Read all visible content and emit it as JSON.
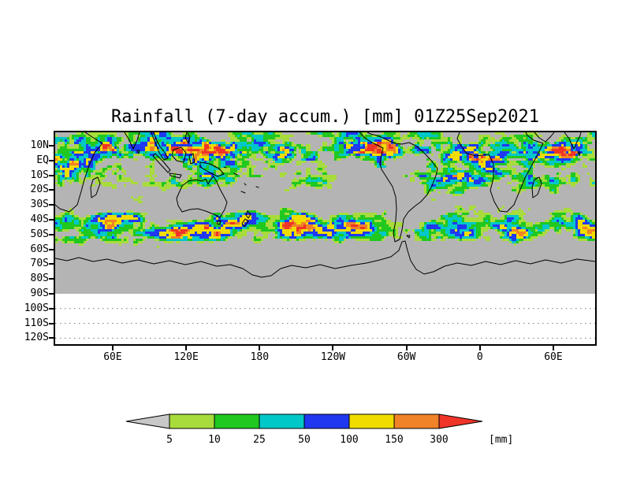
{
  "figure": {
    "title": "Rainfall (7-day accum.) [mm] 01Z25Sep2021"
  },
  "axes": {
    "y_ticks": [
      {
        "label": "10N",
        "lat": 10
      },
      {
        "label": "EQ",
        "lat": 0
      },
      {
        "label": "10S",
        "lat": -10
      },
      {
        "label": "20S",
        "lat": -20
      },
      {
        "label": "30S",
        "lat": -30
      },
      {
        "label": "40S",
        "lat": -40
      },
      {
        "label": "50S",
        "lat": -50
      },
      {
        "label": "60S",
        "lat": -60
      },
      {
        "label": "70S",
        "lat": -70
      },
      {
        "label": "80S",
        "lat": -80
      },
      {
        "label": "90S",
        "lat": -90
      },
      {
        "label": "100S",
        "lat": -100
      },
      {
        "label": "110S",
        "lat": -110
      },
      {
        "label": "120S",
        "lat": -120
      }
    ],
    "x_ticks": [
      {
        "label": "60E",
        "lon": 60
      },
      {
        "label": "120E",
        "lon": 120
      },
      {
        "label": "180",
        "lon": 180
      },
      {
        "label": "120W",
        "lon": 240
      },
      {
        "label": "60W",
        "lon": 300
      },
      {
        "label": "0",
        "lon": 360
      },
      {
        "label": "60E",
        "lon": 420
      }
    ]
  },
  "colorbar": {
    "levels": [
      "5",
      "10",
      "25",
      "50",
      "100",
      "150",
      "300"
    ],
    "units_label": "[mm]",
    "underflow_color": "#c8c8c8",
    "segment_colors": [
      "#a8dc3c",
      "#20c820",
      "#00c8c8",
      "#2038f0",
      "#f0dc00",
      "#f08228"
    ],
    "overflow_color": "#f03428",
    "background_gray": "#b4b4b4"
  },
  "chart_data": {
    "type": "heatmap",
    "title": "Rainfall (7-day accum.) [mm] 01Z25Sep2021",
    "variable": "Rainfall, 7-day accumulation",
    "units": "mm",
    "valid_label": "01Z25Sep2021",
    "color_levels": [
      5,
      10,
      25,
      50,
      100,
      150,
      300
    ],
    "level_colors": {
      "below_5": "#b4b4b4",
      "5_10": "#a8dc3c",
      "10_25": "#20c820",
      "25_50": "#00c8c8",
      "50_100": "#2038f0",
      "100_150": "#f0dc00",
      "150_300": "#f08228",
      "above_300": "#f03428"
    },
    "lat_axis_ticks": [
      "10N",
      "EQ",
      "10S",
      "20S",
      "30S",
      "40S",
      "50S",
      "60S",
      "70S",
      "80S",
      "90S",
      "100S",
      "110S",
      "120S"
    ],
    "lon_axis_ticks": [
      "60E",
      "120E",
      "180",
      "120W",
      "60W",
      "0",
      "60E"
    ],
    "layout_notes": "Global shaded rainfall field on gray background; no shading south of about 60S; region south of 90S is blank white with dotted latitude lines; horizontal colorbar with end arrows below the map"
  }
}
